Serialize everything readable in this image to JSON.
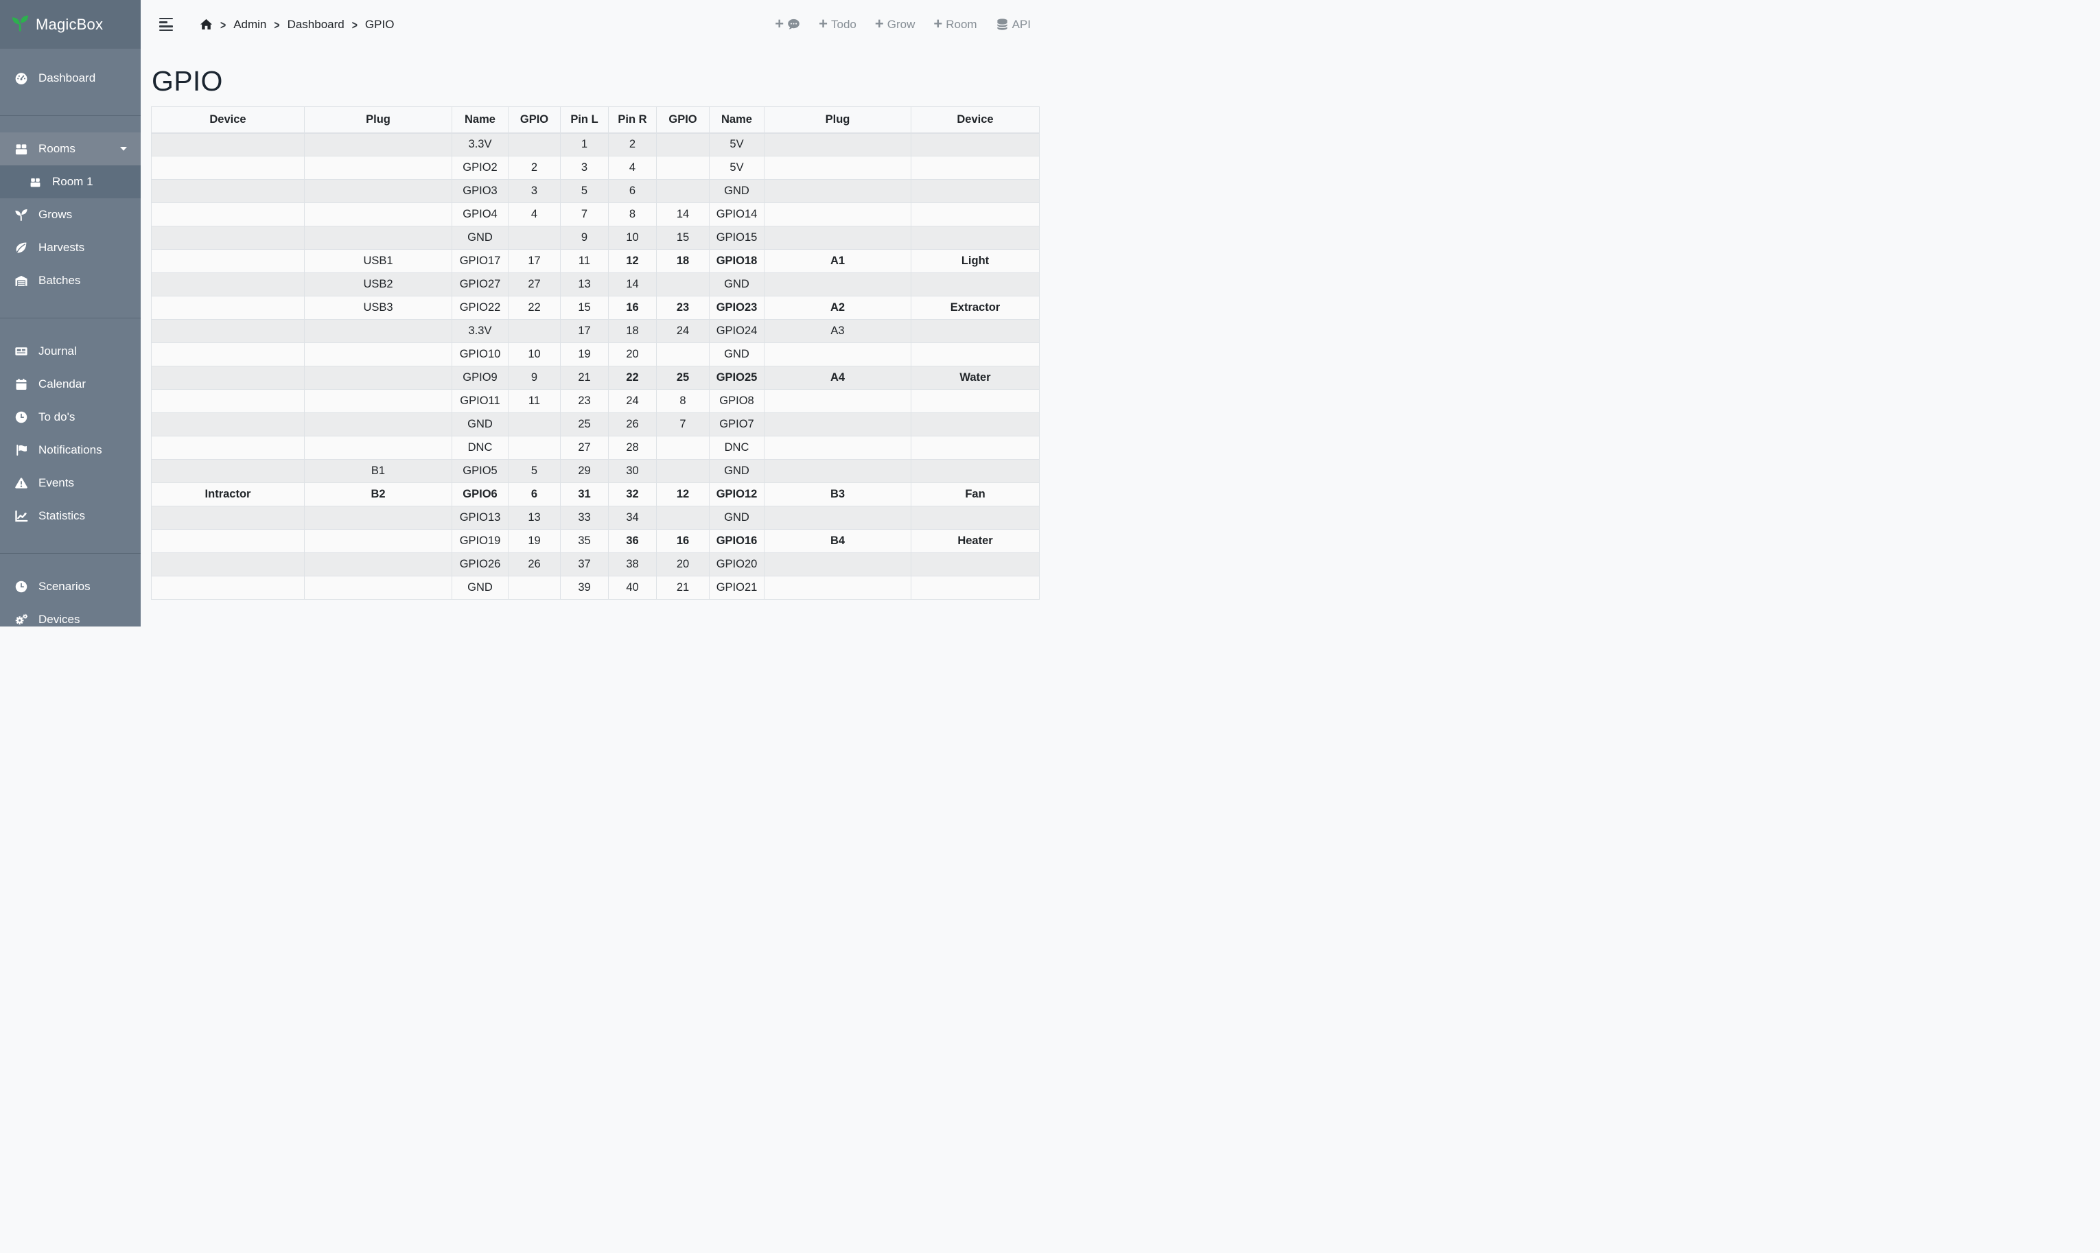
{
  "brand": {
    "name": "MagicBox",
    "logo_icon": "seedling-icon",
    "logo_color": "#2db04e"
  },
  "topbar": {
    "breadcrumb": {
      "home_icon": "home-icon",
      "items": [
        "Admin",
        "Dashboard",
        "GPIO"
      ]
    },
    "actions": [
      {
        "icon": "plus-comment-icon",
        "label": ""
      },
      {
        "icon": "plus-icon",
        "label": "Todo"
      },
      {
        "icon": "plus-icon",
        "label": "Grow"
      },
      {
        "icon": "plus-icon",
        "label": "Room"
      },
      {
        "icon": "database-icon",
        "label": "API"
      }
    ]
  },
  "sidebar": {
    "sections": [
      {
        "items": [
          {
            "label": "Dashboard",
            "icon": "gauge-icon"
          }
        ]
      },
      {
        "items": [
          {
            "label": "Rooms",
            "icon": "box-icon",
            "expanded": true
          },
          {
            "label": "Room 1",
            "icon": "box-icon",
            "active": true
          },
          {
            "label": "Grows",
            "icon": "seedling-icon"
          },
          {
            "label": "Harvests",
            "icon": "leaf-icon"
          },
          {
            "label": "Batches",
            "icon": "warehouse-icon"
          }
        ]
      },
      {
        "items": [
          {
            "label": "Journal",
            "icon": "newspaper-icon"
          },
          {
            "label": "Calendar",
            "icon": "calendar-icon"
          },
          {
            "label": "To do's",
            "icon": "clock-icon"
          },
          {
            "label": "Notifications",
            "icon": "flag-icon"
          },
          {
            "label": "Events",
            "icon": "warning-triangle-icon"
          },
          {
            "label": "Statistics",
            "icon": "chart-line-icon"
          }
        ]
      },
      {
        "items": [
          {
            "label": "Scenarios",
            "icon": "clock-icon"
          },
          {
            "label": "Devices",
            "icon": "gears-icon"
          }
        ]
      }
    ]
  },
  "page": {
    "title": "GPIO"
  },
  "table": {
    "headers": [
      "Device",
      "Plug",
      "Name",
      "GPIO",
      "Pin L",
      "Pin R",
      "GPIO",
      "Name",
      "Plug",
      "Device"
    ],
    "rows": [
      [
        "",
        "",
        "3.3V",
        "",
        "1",
        "2",
        "",
        "5V",
        "",
        ""
      ],
      [
        "",
        "",
        "GPIO2",
        "2",
        "3",
        "4",
        "",
        "5V",
        "",
        ""
      ],
      [
        "",
        "",
        "GPIO3",
        "3",
        "5",
        "6",
        "",
        "GND",
        "",
        ""
      ],
      [
        "",
        "",
        "GPIO4",
        "4",
        "7",
        "8",
        "14",
        "GPIO14",
        "",
        ""
      ],
      [
        "",
        "",
        "GND",
        "",
        "9",
        "10",
        "15",
        "GPIO15",
        "",
        ""
      ],
      [
        "",
        "USB1",
        "GPIO17",
        "17",
        "11",
        {
          "t": "12",
          "s": "b"
        },
        {
          "t": "18",
          "s": "b"
        },
        {
          "t": "GPIO18",
          "s": "b"
        },
        {
          "t": "A1",
          "s": "rb"
        },
        {
          "t": "Light",
          "s": "rb"
        }
      ],
      [
        "",
        "USB2",
        "GPIO27",
        "27",
        "13",
        "14",
        "",
        "GND",
        "",
        ""
      ],
      [
        "",
        "USB3",
        "GPIO22",
        "22",
        "15",
        {
          "t": "16",
          "s": "b"
        },
        {
          "t": "23",
          "s": "b"
        },
        {
          "t": "GPIO23",
          "s": "b"
        },
        {
          "t": "A2",
          "s": "gb"
        },
        {
          "t": "Extractor",
          "s": "gb"
        }
      ],
      [
        "",
        "",
        "3.3V",
        "",
        "17",
        "18",
        "24",
        "GPIO24",
        "A3",
        ""
      ],
      [
        "",
        "",
        "GPIO10",
        "10",
        "19",
        "20",
        "",
        "GND",
        "",
        ""
      ],
      [
        "",
        "",
        "GPIO9",
        "9",
        "21",
        {
          "t": "22",
          "s": "b"
        },
        {
          "t": "25",
          "s": "b"
        },
        {
          "t": "GPIO25",
          "s": "b"
        },
        {
          "t": "A4",
          "s": "rb"
        },
        {
          "t": "Water",
          "s": "rb"
        }
      ],
      [
        "",
        "",
        "GPIO11",
        "11",
        "23",
        "24",
        "8",
        "GPIO8",
        "",
        ""
      ],
      [
        "",
        "",
        "GND",
        "",
        "25",
        "26",
        "7",
        "GPIO7",
        "",
        ""
      ],
      [
        "",
        "",
        "DNC",
        "",
        "27",
        "28",
        "",
        "DNC",
        "",
        ""
      ],
      [
        "",
        "B1",
        "GPIO5",
        "5",
        "29",
        "30",
        "",
        "GND",
        "",
        ""
      ],
      [
        {
          "t": "Intractor",
          "s": "rb"
        },
        {
          "t": "B2",
          "s": "rb"
        },
        {
          "t": "GPIO6",
          "s": "b"
        },
        {
          "t": "6",
          "s": "b"
        },
        {
          "t": "31",
          "s": "b"
        },
        {
          "t": "32",
          "s": "b"
        },
        {
          "t": "12",
          "s": "b"
        },
        {
          "t": "GPIO12",
          "s": "b"
        },
        {
          "t": "B3",
          "s": "rb"
        },
        {
          "t": "Fan",
          "s": "rb"
        }
      ],
      [
        "",
        "",
        "GPIO13",
        "13",
        "33",
        "34",
        "",
        "GND",
        "",
        ""
      ],
      [
        "",
        "",
        "GPIO19",
        "19",
        "35",
        {
          "t": "36",
          "s": "b"
        },
        {
          "t": "16",
          "s": "b"
        },
        {
          "t": "GPIO16",
          "s": "b"
        },
        {
          "t": "B4",
          "s": "rb"
        },
        {
          "t": "Heater",
          "s": "rb"
        }
      ],
      [
        "",
        "",
        "GPIO26",
        "26",
        "37",
        "38",
        "20",
        "GPIO20",
        "",
        ""
      ],
      [
        "",
        "",
        "GND",
        "",
        "39",
        "40",
        "21",
        "GPIO21",
        "",
        ""
      ]
    ]
  },
  "colors": {
    "danger": "#dc3545",
    "success": "#28a745",
    "sidebar": "#6d7b8a",
    "sidebar_dark": "#5f6e7d"
  }
}
